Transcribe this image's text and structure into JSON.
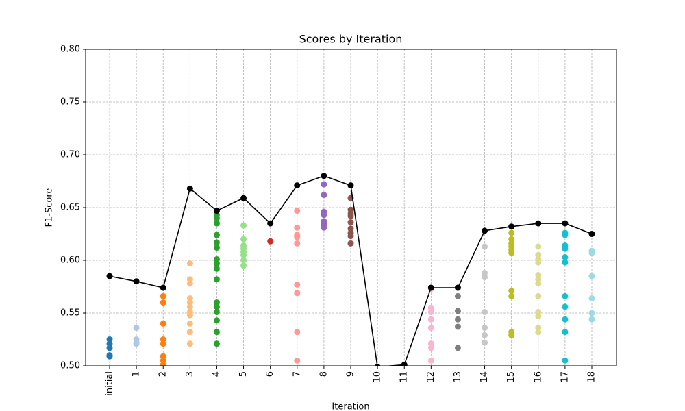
{
  "chart_data": {
    "type": "scatter",
    "title": "Scores by Iteration",
    "xlabel": "Iteration",
    "ylabel": "F1-Score",
    "categories": [
      "initial",
      "1",
      "2",
      "3",
      "4",
      "5",
      "6",
      "7",
      "8",
      "9",
      "10",
      "11",
      "12",
      "13",
      "14",
      "15",
      "16",
      "17",
      "18"
    ],
    "ylim": [
      0.5,
      0.8
    ],
    "yticks": [
      {
        "value": 0.5,
        "label": "0.50"
      },
      0.55,
      {
        "value": 0.6,
        "label": "0.60"
      },
      0.65,
      {
        "value": 0.7,
        "label": "0.70"
      },
      0.75,
      {
        "value": 0.8,
        "label": "0.80"
      }
    ],
    "grid": true,
    "groups": [
      {
        "color": "#1f77b4",
        "values": [
          0.525,
          0.521,
          0.517,
          0.51,
          0.509
        ]
      },
      {
        "color": "#aec7e8",
        "values": [
          0.536,
          0.525,
          0.522,
          0.521
        ]
      },
      {
        "color": "#ff7f0e",
        "values": [
          0.566,
          0.56,
          0.54,
          0.525,
          0.521,
          0.509,
          0.505,
          0.501
        ]
      },
      {
        "color": "#ffbb78",
        "values": [
          0.597,
          0.582,
          0.578,
          0.564,
          0.56,
          0.556,
          0.551,
          0.548,
          0.54,
          0.532,
          0.521
        ]
      },
      {
        "color": "#2ca02c",
        "values": [
          0.643,
          0.64,
          0.635,
          0.624,
          0.617,
          0.612,
          0.601,
          0.597,
          0.592,
          0.582,
          0.56,
          0.556,
          0.551,
          0.543,
          0.532,
          0.521
        ]
      },
      {
        "color": "#98df8a",
        "values": [
          0.633,
          0.62,
          0.614,
          0.611,
          0.608,
          0.605,
          0.6,
          0.595
        ]
      },
      {
        "color": "#d62728",
        "values": [
          0.618
        ]
      },
      {
        "color": "#ff9896",
        "values": [
          0.647,
          0.631,
          0.624,
          0.622,
          0.616,
          0.577,
          0.569,
          0.532,
          0.505
        ]
      },
      {
        "color": "#9467bd",
        "values": [
          0.672,
          0.662,
          0.646,
          0.643,
          0.637,
          0.634,
          0.631
        ]
      },
      {
        "color": "#8c564b",
        "values": [
          0.659,
          0.648,
          0.644,
          0.642,
          0.636,
          0.63,
          0.626,
          0.623,
          0.616
        ]
      },
      {
        "color": "#c49c94",
        "values": []
      },
      {
        "color": "#e377c2",
        "values": []
      },
      {
        "color": "#f7b6d2",
        "values": [
          0.573,
          0.555,
          0.551,
          0.544,
          0.536,
          0.521,
          0.517,
          0.505
        ]
      },
      {
        "color": "#7f7f7f",
        "values": [
          0.566,
          0.552,
          0.544,
          0.537,
          0.517
        ]
      },
      {
        "color": "#c7c7c7",
        "values": [
          0.613,
          0.588,
          0.584,
          0.551,
          0.536,
          0.529,
          0.522
        ]
      },
      {
        "color": "#bcbd22",
        "values": [
          0.626,
          0.62,
          0.616,
          0.613,
          0.61,
          0.607,
          0.571,
          0.566,
          0.532,
          0.529
        ]
      },
      {
        "color": "#dbdb8d",
        "values": [
          0.613,
          0.605,
          0.601,
          0.598,
          0.586,
          0.582,
          0.578,
          0.566,
          0.551,
          0.547,
          0.536,
          0.532
        ]
      },
      {
        "color": "#17becf",
        "values": [
          0.626,
          0.624,
          0.614,
          0.611,
          0.603,
          0.598,
          0.566,
          0.556,
          0.544,
          0.532,
          0.505
        ]
      },
      {
        "color": "#9edae5",
        "values": [
          0.609,
          0.607,
          0.585,
          0.564,
          0.55,
          0.544
        ]
      }
    ],
    "line": {
      "color": "#000000",
      "values": [
        0.585,
        0.58,
        0.574,
        0.668,
        0.647,
        0.659,
        0.635,
        0.671,
        0.68,
        0.671,
        0.499,
        0.501,
        0.574,
        0.574,
        0.628,
        0.632,
        0.635,
        0.635,
        0.625
      ]
    }
  }
}
